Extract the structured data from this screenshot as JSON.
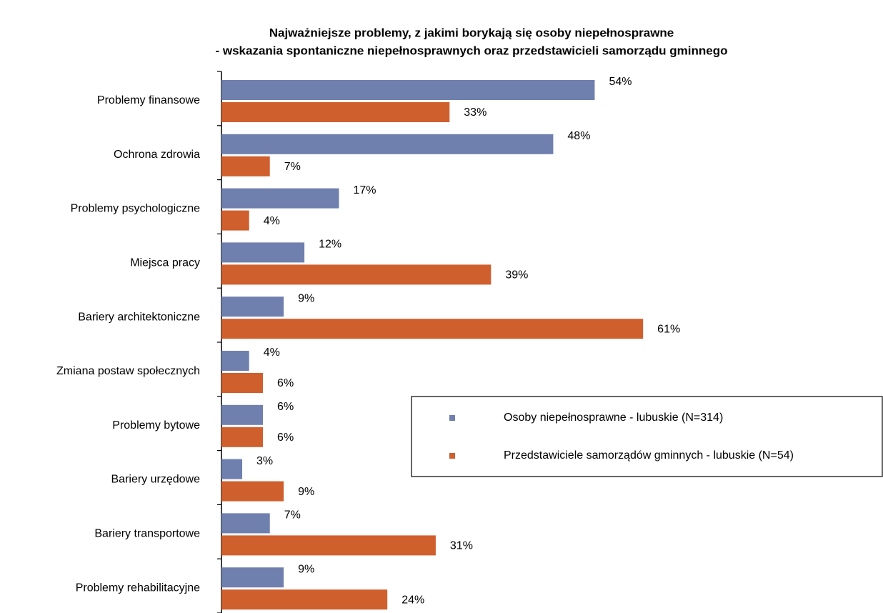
{
  "chart_data": {
    "type": "bar",
    "orientation": "horizontal",
    "title": "Najważniejsze problemy, z jakimi borykają się osoby niepełnosprawne",
    "subtitle": "- wskazania spontaniczne niepełnosprawnych oraz przedstawicieli samorządu gminnego",
    "categories": [
      "Problemy finansowe",
      "Ochrona zdrowia",
      "Problemy psychologiczne",
      "Miejsca pracy",
      "Bariery architektoniczne",
      "Zmiana postaw społecznych",
      "Problemy bytowe",
      "Bariery urzędowe",
      "Bariery transportowe",
      "Problemy rehabilitacyjne"
    ],
    "series": [
      {
        "name": "Osoby niepełnosprawne - lubuskie (N=314)",
        "color": "#6f7fae",
        "values": [
          54,
          48,
          17,
          12,
          9,
          4,
          6,
          3,
          7,
          9
        ],
        "value_labels": [
          "54%",
          "48%",
          "17%",
          "12%",
          "9%",
          "4%",
          "6%",
          "3%",
          "7%",
          "9%"
        ]
      },
      {
        "name": "Przedstawiciele samorządów gminnych - lubuskie (N=54)",
        "color": "#d05f2e",
        "values": [
          33,
          7,
          4,
          39,
          61,
          6,
          6,
          9,
          31,
          24
        ],
        "value_labels": [
          "33%",
          "7%",
          "4%",
          "39%",
          "61%",
          "6%",
          "6%",
          "9%",
          "31%",
          "24%"
        ]
      }
    ],
    "legend": "lower right"
  }
}
